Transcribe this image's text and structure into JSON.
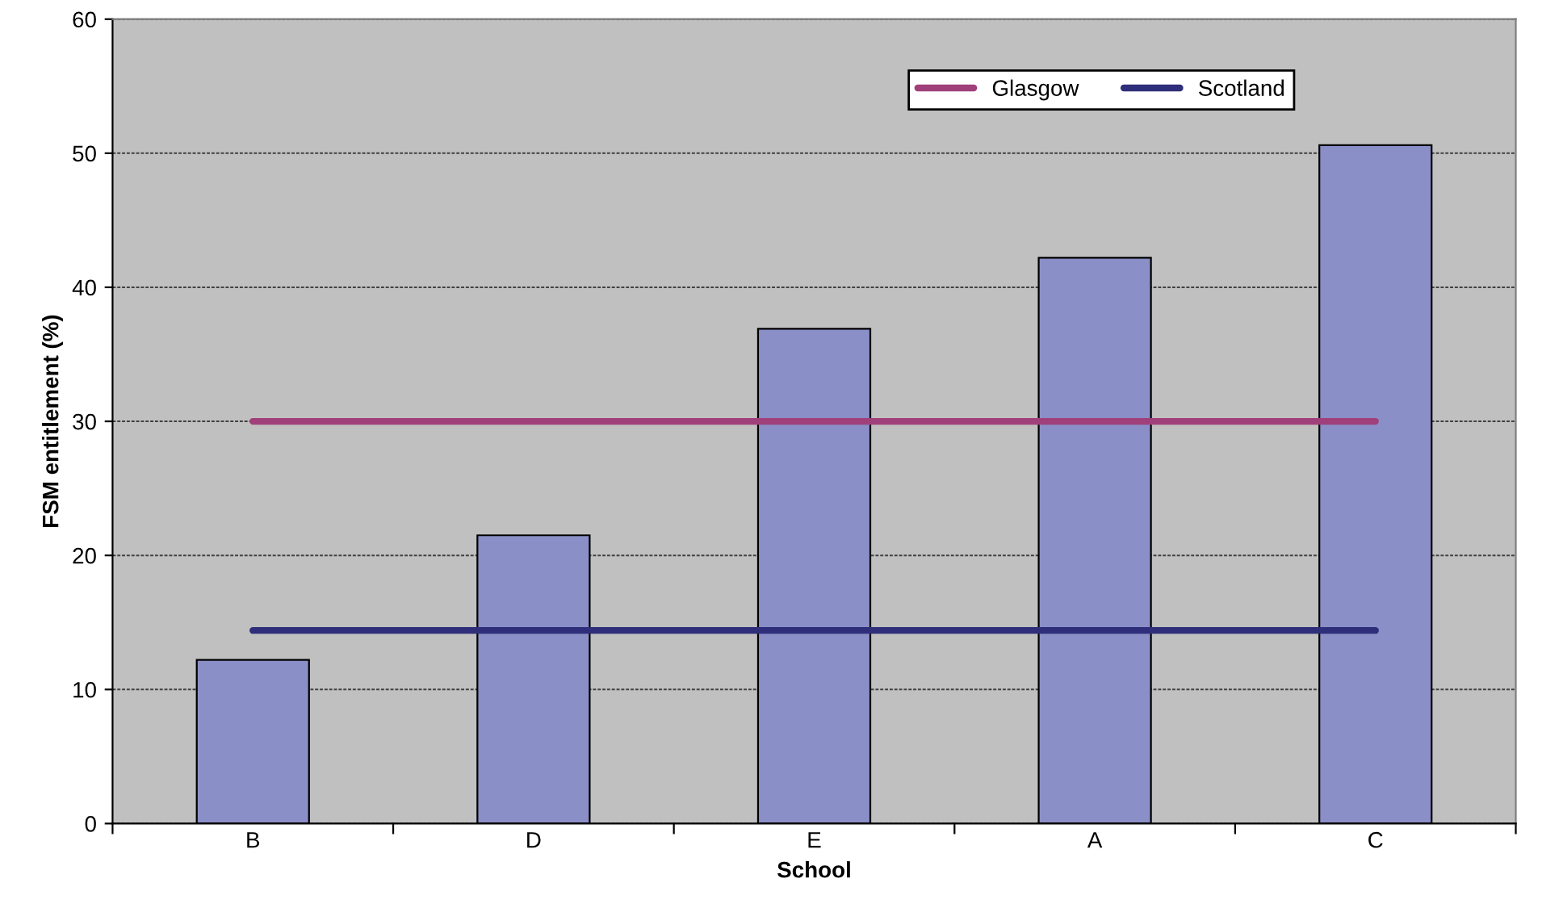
{
  "chart_data": {
    "type": "bar",
    "xlabel": "School",
    "ylabel": "FSM entitlement (%)",
    "categories": [
      "B",
      "D",
      "E",
      "A",
      "C"
    ],
    "series": [
      {
        "color": "#8b8fc7",
        "values": [
          12.2,
          21.5,
          36.9,
          42.2,
          50.6
        ]
      },
      {
        "type": "line",
        "name": "Glasgow",
        "color": "#a0407a",
        "values": [
          30,
          30,
          30,
          30,
          30
        ]
      },
      {
        "type": "line",
        "name": "Scotland",
        "color": "#2e2e7a",
        "values": [
          14.4,
          14.4,
          14.4,
          14.4,
          14.4
        ]
      }
    ],
    "ylim": [
      0,
      60
    ],
    "yticks": [
      0,
      10,
      20,
      30,
      40,
      50,
      60
    ],
    "grid": "y",
    "legend": "top right",
    "marker": "none",
    "line_style": "solid"
  }
}
